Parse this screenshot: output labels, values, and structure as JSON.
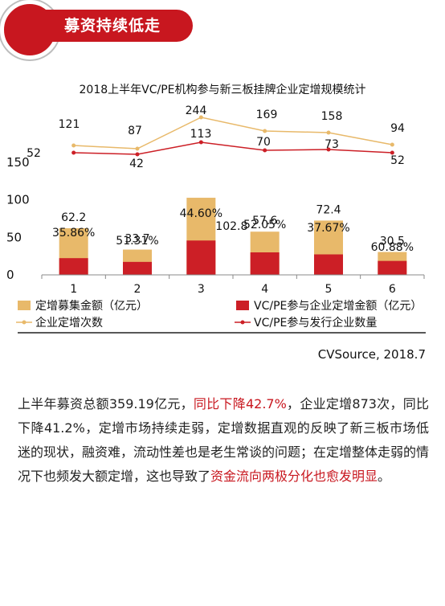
{
  "header": {
    "title": "募资持续低走"
  },
  "chart_data": {
    "type": "bar",
    "title": "2018上半年VC/PE机构参与新三板挂牌企业定增规模统计",
    "categories": [
      "1",
      "2",
      "3",
      "4",
      "5",
      "6"
    ],
    "ylim": [
      0,
      150
    ],
    "yticks": [
      "0",
      "50",
      "100",
      "150"
    ],
    "series": [
      {
        "name": "定增募集金额（亿元）",
        "kind": "bar",
        "values": [
          62.2,
          33.7,
          102.8,
          57.6,
          72.4,
          30.5
        ],
        "labels": [
          "62.2",
          "33.7",
          "102.8",
          "57.6",
          "72.4",
          "30.5"
        ]
      },
      {
        "name": "VC/PE参与企业定增金额（亿元）",
        "kind": "bar",
        "values": [
          22.3,
          17.3,
          45.8,
          30.0,
          27.3,
          18.6
        ],
        "labels": [
          "35.86%",
          "51.31%",
          "44.60%",
          "52.05%",
          "37.67%",
          "60.88%"
        ]
      },
      {
        "name": "企业定增次数",
        "kind": "line",
        "values": [
          121,
          87,
          244,
          169,
          158,
          94
        ],
        "labels": [
          "121",
          "87",
          "244",
          "169",
          "158",
          "94"
        ]
      },
      {
        "name": "VC/PE参与发行企业数量",
        "kind": "line",
        "values": [
          52,
          42,
          113,
          70,
          73,
          52
        ],
        "labels": [
          "52",
          "42",
          "113",
          "70",
          "73",
          "52"
        ]
      }
    ],
    "legend_position": "bottom",
    "colors": {
      "total": "#e8b96a",
      "vcpe": "#cc1f26",
      "count": "#e8b96a",
      "vcpe_count": "#cc1f26",
      "axis": "#888888"
    }
  },
  "source": "CVSource, 2018.7",
  "paragraph": {
    "p1": "上半年募资总额359.19亿元，",
    "p2": "同比下降42.7%",
    "p3": "，企业定增873次，同比下降41.2%，定增市场持续走弱，定增数据直观的反映了新三板市场低迷的现状，融资难，流动性差也是老生常谈的问题；在定增整体走弱的情况下也频发大额定增，这也导致了",
    "p4": "资金流向两极分化也愈发明显",
    "p5": "。"
  }
}
